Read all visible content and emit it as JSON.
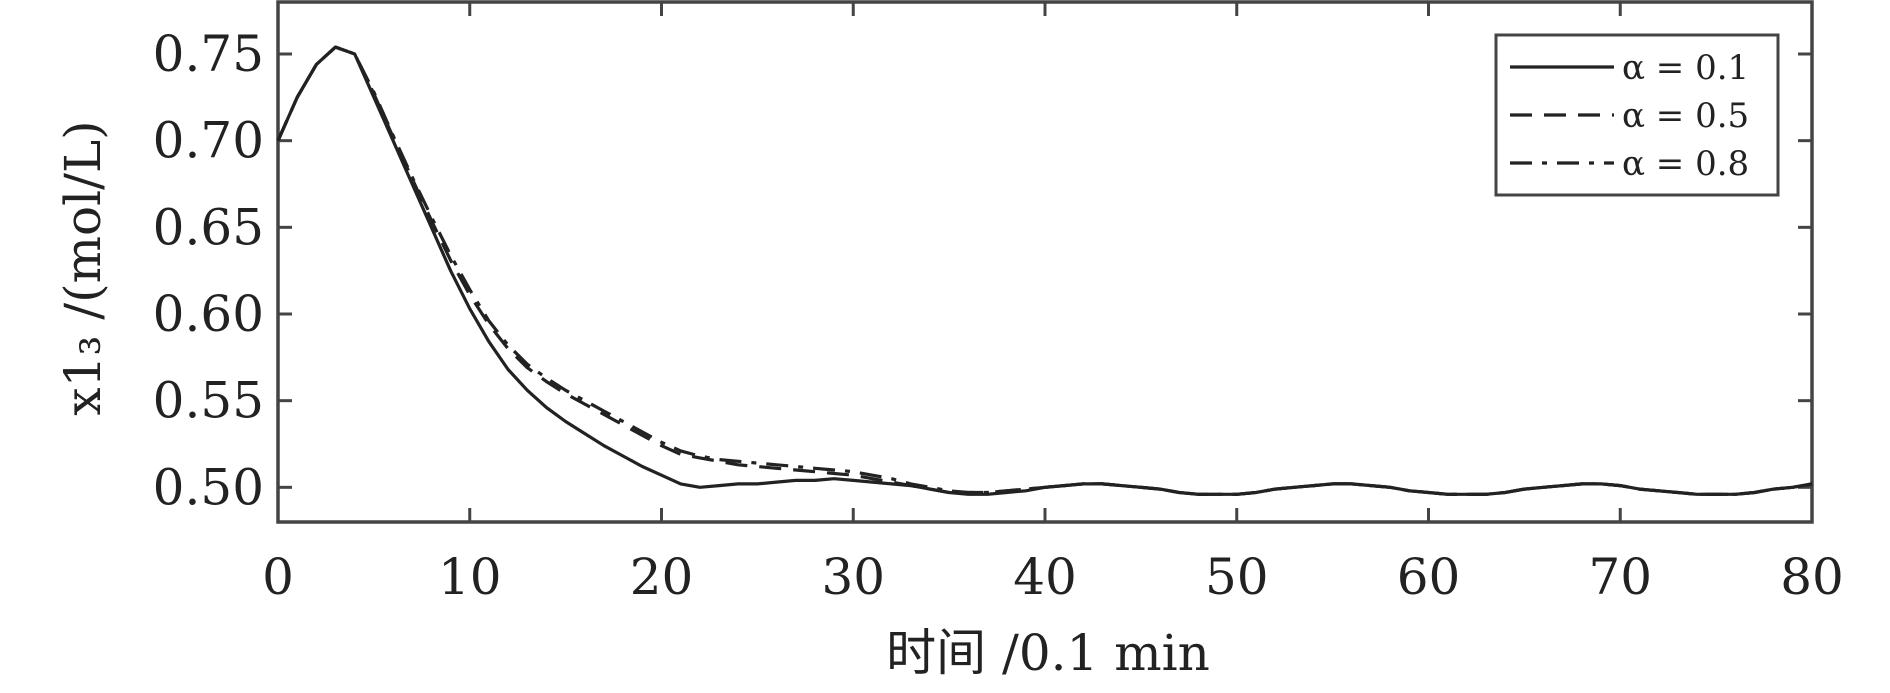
{
  "chart_data": {
    "type": "line",
    "title": "",
    "xlabel": "时间 /0.1 min",
    "ylabel": "x1₃ /(mol/L)",
    "xlim": [
      0,
      80
    ],
    "ylim": [
      0.48,
      0.78
    ],
    "xticks": [
      0,
      10,
      20,
      30,
      40,
      50,
      60,
      70,
      80
    ],
    "xtick_labels": [
      "0",
      "10",
      "20",
      "30",
      "40",
      "50",
      "60",
      "70",
      "80"
    ],
    "yticks": [
      0.5,
      0.55,
      0.6,
      0.65,
      0.7,
      0.75
    ],
    "ytick_labels": [
      "0.50",
      "0.55",
      "0.60",
      "0.65",
      "0.70",
      "0.75"
    ],
    "grid": false,
    "legend_position": "top-right",
    "series": [
      {
        "name": "α = 0.1",
        "style": "solid",
        "x": [
          0,
          1,
          2,
          3,
          4,
          5,
          6,
          7,
          8,
          9,
          10,
          11,
          12,
          13,
          14,
          15,
          16,
          17,
          18,
          19,
          20,
          21,
          22,
          23,
          24,
          25,
          26,
          27,
          28,
          29,
          30,
          31,
          32,
          33,
          34,
          35,
          36,
          37,
          38,
          39,
          40,
          41,
          42,
          43,
          44,
          45,
          46,
          47,
          48,
          49,
          50,
          51,
          52,
          53,
          54,
          55,
          56,
          57,
          58,
          59,
          60,
          61,
          62,
          63,
          64,
          65,
          66,
          67,
          68,
          69,
          70,
          71,
          72,
          73,
          74,
          75,
          76,
          77,
          78,
          79,
          80
        ],
        "y": [
          0.7,
          0.725,
          0.744,
          0.754,
          0.75,
          0.725,
          0.7,
          0.675,
          0.65,
          0.625,
          0.603,
          0.584,
          0.568,
          0.556,
          0.546,
          0.538,
          0.531,
          0.524,
          0.518,
          0.512,
          0.507,
          0.502,
          0.5,
          0.501,
          0.502,
          0.502,
          0.503,
          0.504,
          0.504,
          0.505,
          0.504,
          0.503,
          0.502,
          0.501,
          0.499,
          0.497,
          0.496,
          0.496,
          0.497,
          0.498,
          0.5,
          0.501,
          0.502,
          0.502,
          0.501,
          0.5,
          0.499,
          0.497,
          0.496,
          0.496,
          0.496,
          0.497,
          0.499,
          0.5,
          0.501,
          0.502,
          0.502,
          0.501,
          0.5,
          0.498,
          0.497,
          0.496,
          0.496,
          0.496,
          0.497,
          0.499,
          0.5,
          0.501,
          0.502,
          0.502,
          0.501,
          0.499,
          0.498,
          0.497,
          0.496,
          0.496,
          0.496,
          0.497,
          0.499,
          0.5,
          0.502
        ]
      },
      {
        "name": "α = 0.5",
        "style": "dashed",
        "x": [
          0,
          1,
          2,
          3,
          4,
          5,
          6,
          7,
          8,
          9,
          10,
          11,
          12,
          13,
          14,
          15,
          16,
          17,
          18,
          19,
          20,
          21,
          22,
          23,
          24,
          25,
          26,
          27,
          28,
          29,
          30,
          31,
          32,
          33,
          34,
          35,
          36,
          37,
          38,
          39,
          40,
          41,
          42,
          43,
          44,
          45,
          46,
          47,
          48,
          49,
          50,
          51,
          52,
          53,
          54,
          55,
          56,
          57,
          58,
          59,
          60,
          61,
          62,
          63,
          64,
          65,
          66,
          67,
          68,
          69,
          70,
          71,
          72,
          73,
          74,
          75,
          76,
          77,
          78,
          79,
          80
        ],
        "y": [
          0.7,
          0.725,
          0.744,
          0.754,
          0.75,
          0.727,
          0.702,
          0.678,
          0.654,
          0.631,
          0.611,
          0.594,
          0.58,
          0.569,
          0.561,
          0.554,
          0.548,
          0.542,
          0.536,
          0.53,
          0.524,
          0.519,
          0.517,
          0.515,
          0.513,
          0.512,
          0.511,
          0.51,
          0.509,
          0.508,
          0.507,
          0.505,
          0.503,
          0.501,
          0.499,
          0.497,
          0.497,
          0.497,
          0.498,
          0.499,
          0.5,
          0.501,
          0.502,
          0.502,
          0.501,
          0.5,
          0.499,
          0.497,
          0.496,
          0.496,
          0.496,
          0.497,
          0.499,
          0.5,
          0.501,
          0.502,
          0.502,
          0.501,
          0.5,
          0.498,
          0.497,
          0.496,
          0.496,
          0.496,
          0.497,
          0.499,
          0.5,
          0.501,
          0.502,
          0.502,
          0.501,
          0.499,
          0.498,
          0.497,
          0.496,
          0.496,
          0.496,
          0.497,
          0.499,
          0.5,
          0.502
        ]
      },
      {
        "name": "α = 0.8",
        "style": "dashdot",
        "x": [
          0,
          1,
          2,
          3,
          4,
          5,
          6,
          7,
          8,
          9,
          10,
          11,
          12,
          13,
          14,
          15,
          16,
          17,
          18,
          19,
          20,
          21,
          22,
          23,
          24,
          25,
          26,
          27,
          28,
          29,
          30,
          31,
          32,
          33,
          34,
          35,
          36,
          37,
          38,
          39,
          40,
          41,
          42,
          43,
          44,
          45,
          46,
          47,
          48,
          49,
          50,
          51,
          52,
          53,
          54,
          55,
          56,
          57,
          58,
          59,
          60,
          61,
          62,
          63,
          64,
          65,
          66,
          67,
          68,
          69,
          70,
          71,
          72,
          73,
          74,
          75,
          76,
          77,
          78,
          79,
          80
        ],
        "y": [
          0.7,
          0.725,
          0.744,
          0.754,
          0.75,
          0.728,
          0.703,
          0.679,
          0.656,
          0.634,
          0.614,
          0.596,
          0.582,
          0.571,
          0.563,
          0.556,
          0.55,
          0.544,
          0.538,
          0.532,
          0.526,
          0.521,
          0.518,
          0.516,
          0.515,
          0.514,
          0.513,
          0.512,
          0.511,
          0.51,
          0.509,
          0.507,
          0.505,
          0.502,
          0.5,
          0.498,
          0.497,
          0.497,
          0.498,
          0.499,
          0.5,
          0.501,
          0.502,
          0.502,
          0.501,
          0.5,
          0.499,
          0.497,
          0.496,
          0.496,
          0.496,
          0.497,
          0.499,
          0.5,
          0.501,
          0.502,
          0.502,
          0.501,
          0.5,
          0.498,
          0.497,
          0.496,
          0.496,
          0.496,
          0.497,
          0.499,
          0.5,
          0.501,
          0.502,
          0.502,
          0.501,
          0.499,
          0.498,
          0.497,
          0.496,
          0.496,
          0.496,
          0.497,
          0.499,
          0.5,
          0.502
        ]
      }
    ],
    "colors": {
      "line": "#222222",
      "axes": "#444444",
      "legend_border": "#444444"
    }
  }
}
